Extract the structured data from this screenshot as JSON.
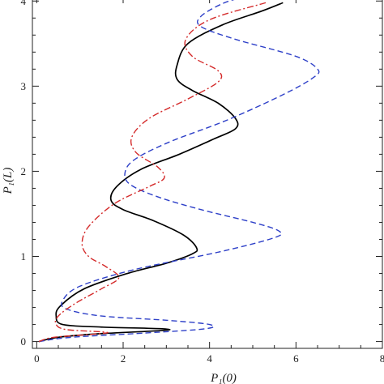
{
  "chart_data": {
    "type": "line",
    "title": "",
    "xlabel": "P₁(0)",
    "ylabel": "P₁(L)",
    "xlim": [
      -0.1,
      8.0
    ],
    "ylim": [
      -0.08,
      4.05
    ],
    "grid": false,
    "legend": "none",
    "x_ticks": [
      "0",
      "2",
      "4",
      "6",
      "8"
    ],
    "y_ticks": [
      "0",
      "1",
      "2",
      "3",
      "4"
    ],
    "series": [
      {
        "color": "#000000",
        "dash": "solid",
        "points": [
          [
            0.05,
            0.0
          ],
          [
            0.5,
            0.05
          ],
          [
            1.4,
            0.09
          ],
          [
            2.9,
            0.13
          ],
          [
            2.9,
            0.15
          ],
          [
            1.5,
            0.17
          ],
          [
            0.6,
            0.2
          ],
          [
            0.45,
            0.3
          ],
          [
            0.55,
            0.42
          ],
          [
            1.1,
            0.62
          ],
          [
            2.1,
            0.8
          ],
          [
            3.0,
            0.92
          ],
          [
            3.6,
            1.03
          ],
          [
            3.7,
            1.1
          ],
          [
            3.4,
            1.25
          ],
          [
            2.7,
            1.42
          ],
          [
            2.0,
            1.55
          ],
          [
            1.72,
            1.66
          ],
          [
            1.85,
            1.82
          ],
          [
            2.4,
            2.02
          ],
          [
            3.3,
            2.2
          ],
          [
            4.1,
            2.38
          ],
          [
            4.6,
            2.5
          ],
          [
            4.6,
            2.62
          ],
          [
            4.2,
            2.8
          ],
          [
            3.6,
            2.95
          ],
          [
            3.25,
            3.08
          ],
          [
            3.25,
            3.25
          ],
          [
            3.5,
            3.5
          ],
          [
            4.3,
            3.72
          ],
          [
            5.2,
            3.88
          ],
          [
            5.7,
            3.98
          ]
        ]
      },
      {
        "color": "#2e40c8",
        "dash": "dashed",
        "points": [
          [
            0.05,
            0.0
          ],
          [
            0.8,
            0.05
          ],
          [
            2.5,
            0.1
          ],
          [
            3.9,
            0.15
          ],
          [
            4.0,
            0.2
          ],
          [
            3.0,
            0.25
          ],
          [
            1.5,
            0.3
          ],
          [
            0.7,
            0.38
          ],
          [
            0.6,
            0.48
          ],
          [
            1.0,
            0.65
          ],
          [
            2.3,
            0.85
          ],
          [
            4.2,
            1.05
          ],
          [
            5.5,
            1.22
          ],
          [
            5.6,
            1.3
          ],
          [
            5.0,
            1.4
          ],
          [
            3.8,
            1.55
          ],
          [
            2.8,
            1.7
          ],
          [
            2.15,
            1.85
          ],
          [
            2.05,
            2.0
          ],
          [
            2.3,
            2.15
          ],
          [
            3.1,
            2.35
          ],
          [
            4.4,
            2.6
          ],
          [
            5.7,
            2.9
          ],
          [
            6.4,
            3.1
          ],
          [
            6.5,
            3.2
          ],
          [
            6.0,
            3.35
          ],
          [
            4.6,
            3.55
          ],
          [
            3.8,
            3.7
          ],
          [
            3.8,
            3.82
          ],
          [
            4.3,
            3.97
          ],
          [
            4.8,
            4.05
          ]
        ]
      },
      {
        "color": "#d42a2a",
        "dash": "dashdot",
        "points": [
          [
            0.05,
            0.0
          ],
          [
            0.4,
            0.05
          ],
          [
            1.4,
            0.09
          ],
          [
            1.6,
            0.11
          ],
          [
            0.7,
            0.14
          ],
          [
            0.45,
            0.2
          ],
          [
            0.5,
            0.3
          ],
          [
            0.9,
            0.45
          ],
          [
            1.5,
            0.62
          ],
          [
            1.9,
            0.75
          ],
          [
            1.6,
            0.88
          ],
          [
            1.2,
            1.0
          ],
          [
            1.05,
            1.15
          ],
          [
            1.2,
            1.35
          ],
          [
            1.8,
            1.62
          ],
          [
            2.6,
            1.82
          ],
          [
            2.95,
            1.92
          ],
          [
            2.8,
            2.05
          ],
          [
            2.3,
            2.22
          ],
          [
            2.2,
            2.4
          ],
          [
            2.6,
            2.62
          ],
          [
            3.5,
            2.85
          ],
          [
            4.2,
            3.05
          ],
          [
            4.2,
            3.18
          ],
          [
            3.6,
            3.35
          ],
          [
            3.45,
            3.55
          ],
          [
            4.0,
            3.78
          ],
          [
            5.3,
            3.98
          ]
        ]
      }
    ]
  }
}
